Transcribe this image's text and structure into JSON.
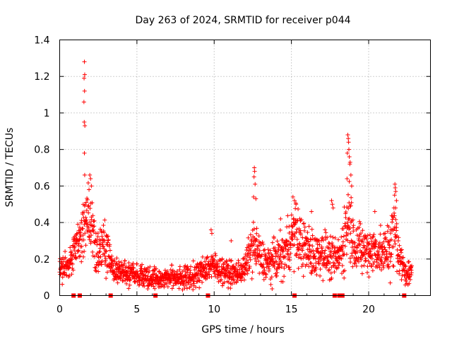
{
  "chart_data": {
    "type": "scatter",
    "title": "Day 263 of 2024, SRMTID for receiver p044",
    "xlabel": "GPS time / hours",
    "ylabel": "SRMTID / TECUs",
    "xlim": [
      0,
      24
    ],
    "ylim": [
      0,
      1.4
    ],
    "xticks": [
      "0",
      "5",
      "10",
      "15",
      "20"
    ],
    "yticks": [
      "0",
      "0.2",
      "0.4",
      "0.6",
      "0.8",
      "1",
      "1.2",
      "1.4"
    ],
    "grid": true,
    "marker": "+",
    "color": "#ff0000",
    "series": [
      {
        "name": "SRMTID",
        "profile": [
          [
            0.0,
            0.16,
            0.05
          ],
          [
            0.25,
            0.15,
            0.05
          ],
          [
            0.5,
            0.15,
            0.05
          ],
          [
            0.75,
            0.2,
            0.06
          ],
          [
            1.0,
            0.28,
            0.08
          ],
          [
            1.25,
            0.3,
            0.1
          ],
          [
            1.5,
            0.35,
            0.12
          ],
          [
            1.75,
            0.45,
            0.12
          ],
          [
            2.0,
            0.45,
            0.15
          ],
          [
            2.25,
            0.3,
            0.12
          ],
          [
            2.5,
            0.25,
            0.1
          ],
          [
            2.75,
            0.3,
            0.1
          ],
          [
            3.0,
            0.25,
            0.1
          ],
          [
            3.5,
            0.14,
            0.05
          ],
          [
            4.0,
            0.13,
            0.05
          ],
          [
            4.5,
            0.12,
            0.05
          ],
          [
            5.0,
            0.12,
            0.05
          ],
          [
            5.5,
            0.11,
            0.05
          ],
          [
            6.0,
            0.1,
            0.04
          ],
          [
            6.5,
            0.09,
            0.04
          ],
          [
            7.0,
            0.1,
            0.04
          ],
          [
            7.5,
            0.1,
            0.05
          ],
          [
            8.0,
            0.1,
            0.05
          ],
          [
            8.5,
            0.1,
            0.05
          ],
          [
            9.0,
            0.12,
            0.05
          ],
          [
            9.5,
            0.16,
            0.06
          ],
          [
            10.0,
            0.16,
            0.06
          ],
          [
            10.5,
            0.14,
            0.05
          ],
          [
            11.0,
            0.12,
            0.05
          ],
          [
            11.5,
            0.12,
            0.05
          ],
          [
            12.0,
            0.15,
            0.05
          ],
          [
            12.25,
            0.22,
            0.08
          ],
          [
            12.5,
            0.28,
            0.1
          ],
          [
            12.75,
            0.25,
            0.1
          ],
          [
            13.0,
            0.2,
            0.08
          ],
          [
            13.5,
            0.17,
            0.08
          ],
          [
            14.0,
            0.2,
            0.08
          ],
          [
            14.5,
            0.22,
            0.1
          ],
          [
            15.0,
            0.32,
            0.12
          ],
          [
            15.25,
            0.35,
            0.12
          ],
          [
            15.5,
            0.3,
            0.12
          ],
          [
            16.0,
            0.25,
            0.1
          ],
          [
            16.5,
            0.22,
            0.1
          ],
          [
            17.0,
            0.25,
            0.1
          ],
          [
            17.5,
            0.2,
            0.08
          ],
          [
            18.0,
            0.2,
            0.08
          ],
          [
            18.25,
            0.25,
            0.1
          ],
          [
            18.5,
            0.35,
            0.15
          ],
          [
            18.75,
            0.45,
            0.2
          ],
          [
            19.0,
            0.3,
            0.12
          ],
          [
            19.5,
            0.25,
            0.1
          ],
          [
            20.0,
            0.25,
            0.1
          ],
          [
            20.5,
            0.25,
            0.1
          ],
          [
            21.0,
            0.22,
            0.1
          ],
          [
            21.5,
            0.3,
            0.15
          ],
          [
            21.75,
            0.35,
            0.15
          ],
          [
            22.0,
            0.2,
            0.08
          ],
          [
            22.5,
            0.12,
            0.05
          ],
          [
            22.8,
            0.12,
            0.05
          ]
        ],
        "spikes": [
          [
            1.6,
            1.28
          ],
          [
            1.62,
            1.21
          ],
          [
            1.58,
            1.19
          ],
          [
            1.61,
            1.12
          ],
          [
            1.57,
            1.06
          ],
          [
            1.59,
            0.95
          ],
          [
            1.63,
            0.93
          ],
          [
            1.6,
            0.78
          ],
          [
            1.62,
            0.66
          ],
          [
            1.95,
            0.66
          ],
          [
            2.0,
            0.64
          ],
          [
            2.05,
            0.6
          ],
          [
            1.9,
            0.58
          ],
          [
            12.6,
            0.7
          ],
          [
            12.62,
            0.68
          ],
          [
            12.58,
            0.65
          ],
          [
            12.65,
            0.61
          ],
          [
            12.55,
            0.54
          ],
          [
            12.7,
            0.53
          ],
          [
            18.65,
            0.88
          ],
          [
            18.68,
            0.86
          ],
          [
            18.7,
            0.84
          ],
          [
            18.72,
            0.8
          ],
          [
            18.62,
            0.78
          ],
          [
            18.75,
            0.76
          ],
          [
            18.8,
            0.73
          ],
          [
            18.78,
            0.72
          ],
          [
            18.85,
            0.66
          ],
          [
            18.6,
            0.64
          ],
          [
            18.9,
            0.6
          ],
          [
            21.7,
            0.61
          ],
          [
            21.72,
            0.59
          ],
          [
            21.75,
            0.57
          ],
          [
            21.68,
            0.55
          ],
          [
            21.8,
            0.52
          ],
          [
            15.1,
            0.54
          ],
          [
            15.2,
            0.52
          ],
          [
            15.3,
            0.5
          ],
          [
            17.6,
            0.52
          ],
          [
            17.65,
            0.5
          ],
          [
            17.7,
            0.48
          ],
          [
            9.8,
            0.36
          ],
          [
            9.85,
            0.34
          ],
          [
            11.1,
            0.3
          ],
          [
            14.3,
            0.42
          ],
          [
            16.3,
            0.46
          ],
          [
            20.4,
            0.46
          ]
        ]
      }
    ],
    "gap_markers_x": [
      0.9,
      1.3,
      3.3,
      6.2,
      9.6,
      15.2,
      17.8,
      18.1,
      18.2,
      18.3,
      22.3
    ]
  }
}
